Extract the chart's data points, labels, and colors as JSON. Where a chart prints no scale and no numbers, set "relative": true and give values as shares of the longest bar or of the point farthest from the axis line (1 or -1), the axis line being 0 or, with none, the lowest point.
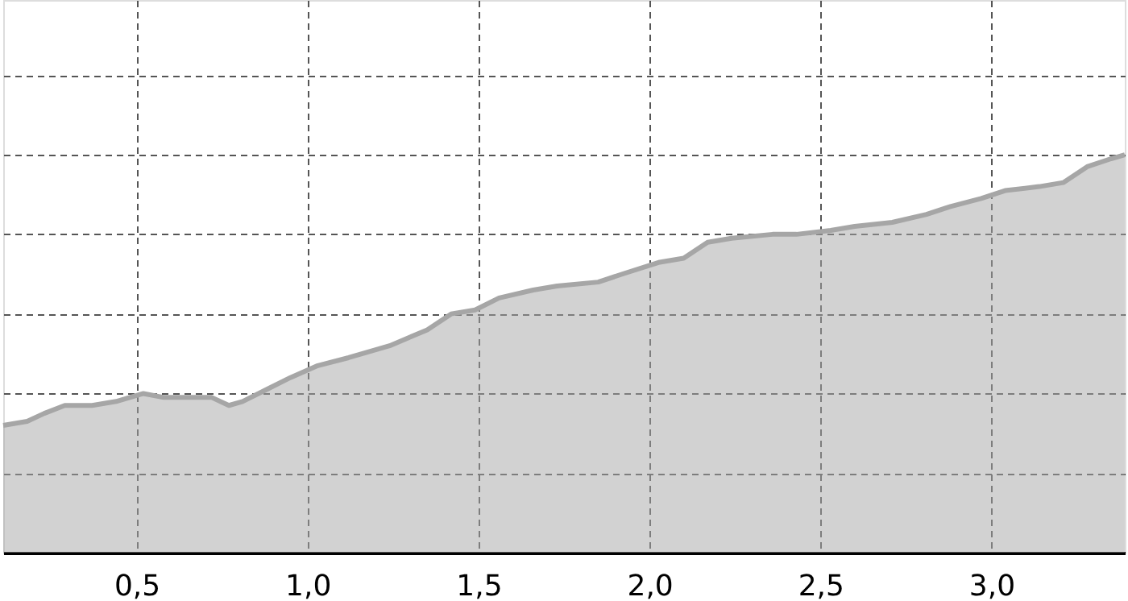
{
  "chart_data": {
    "type": "area",
    "relative": true,
    "grid": true,
    "line_style": "solid",
    "x": [
      0.11,
      0.18,
      0.23,
      0.29,
      0.37,
      0.44,
      0.52,
      0.58,
      0.72,
      0.77,
      0.81,
      0.88,
      0.95,
      1.03,
      1.12,
      1.24,
      1.35,
      1.42,
      1.49,
      1.56,
      1.66,
      1.73,
      1.85,
      1.92,
      2.03,
      2.1,
      2.17,
      2.24,
      2.36,
      2.43,
      2.53,
      2.6,
      2.71,
      2.81,
      2.88,
      2.97,
      3.04,
      3.14,
      3.21,
      3.28,
      3.35,
      3.39
    ],
    "series": [
      {
        "color": "#a6a6a6",
        "values": [
          0.32,
          0.33,
          0.35,
          0.37,
          0.37,
          0.38,
          0.4,
          0.39,
          0.39,
          0.37,
          0.38,
          0.41,
          0.44,
          0.47,
          0.49,
          0.52,
          0.56,
          0.6,
          0.61,
          0.64,
          0.66,
          0.67,
          0.68,
          0.7,
          0.73,
          0.74,
          0.78,
          0.79,
          0.8,
          0.8,
          0.81,
          0.82,
          0.83,
          0.85,
          0.87,
          0.89,
          0.91,
          0.92,
          0.93,
          0.97,
          0.99,
          1.0
        ]
      }
    ],
    "xlim": [
      0.11,
      3.39
    ],
    "xticks": [
      {
        "value": 0.5,
        "label": "0,5"
      },
      {
        "value": 1.0,
        "label": "1,0"
      },
      {
        "value": 1.5,
        "label": "1,5"
      },
      {
        "value": 2.0,
        "label": "2,0"
      },
      {
        "value": 2.5,
        "label": "2,5"
      },
      {
        "value": 3.0,
        "label": "3,0"
      }
    ]
  }
}
